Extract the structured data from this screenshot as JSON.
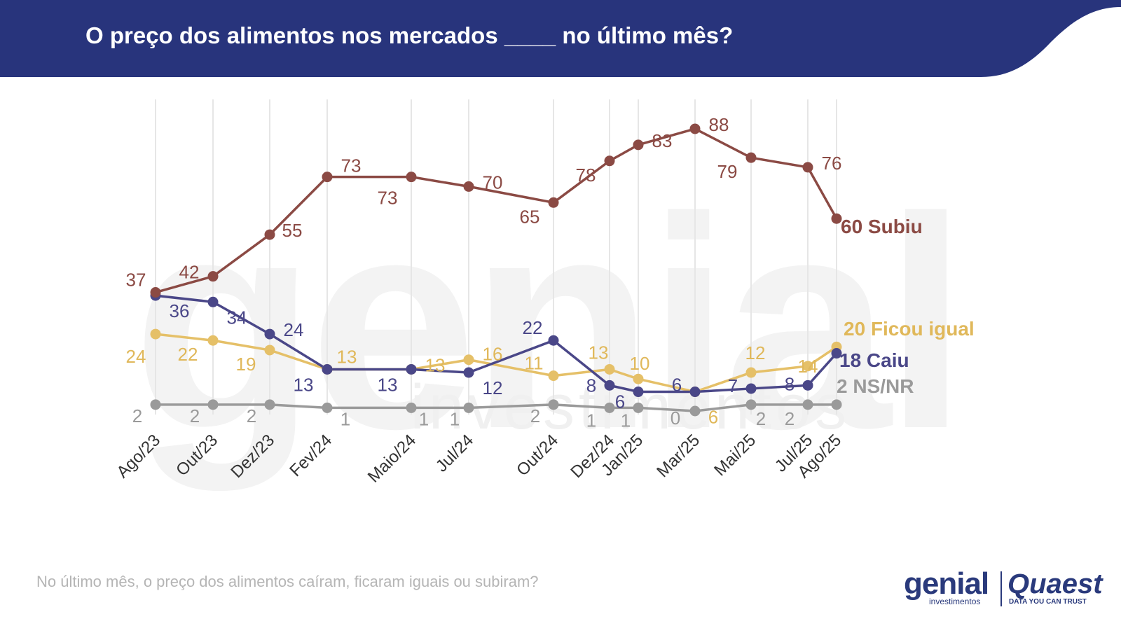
{
  "header": {
    "title": "O preço dos alimentos nos mercados ____ no último mês?",
    "background_color": "#28347c"
  },
  "footnote": "No último mês, o preço dos alimentos caíram, ficaram iguais ou subiram?",
  "logos": {
    "genial": "genial",
    "genial_sub": "investimentos",
    "quaest": "Quaest",
    "quaest_tagline": "DATA YOU CAN TRUST"
  },
  "watermark": {
    "genial": "genial",
    "genial_sub": "investimentos"
  },
  "chart_data": {
    "type": "line",
    "title": "",
    "xlabel": "",
    "ylabel": "",
    "grid": "vertical",
    "categories": [
      "Ago/23",
      "Out/23",
      "Dez/23",
      "Fev/24",
      "Maio/24",
      "Jul/24",
      "Out/24",
      "Dez/24",
      "Jan/25",
      "Mar/25",
      "Mai/25",
      "Jul/25",
      "Ago/25"
    ],
    "series": [
      {
        "name": "Subiu",
        "color": "#8b4a44",
        "values": [
          37,
          42,
          55,
          73,
          73,
          70,
          65,
          78,
          83,
          88,
          79,
          76,
          60
        ],
        "end_label": "60 Subiu"
      },
      {
        "name": "Ficou igual",
        "color": "#e5c068",
        "values": [
          24,
          22,
          19,
          13,
          13,
          16,
          11,
          13,
          10,
          6,
          12,
          14,
          20
        ],
        "end_label": "20 Ficou igual"
      },
      {
        "name": "Caiu",
        "color": "#4a4788",
        "values": [
          36,
          34,
          24,
          13,
          13,
          12,
          22,
          8,
          6,
          6,
          7,
          8,
          18
        ],
        "end_label": "18 Caiu"
      },
      {
        "name": "NS/NR",
        "color": "#9a9a9a",
        "values": [
          2,
          2,
          2,
          1,
          1,
          1,
          2,
          1,
          1,
          0,
          2,
          2,
          2
        ],
        "end_label": "2 NS/NR"
      }
    ]
  }
}
